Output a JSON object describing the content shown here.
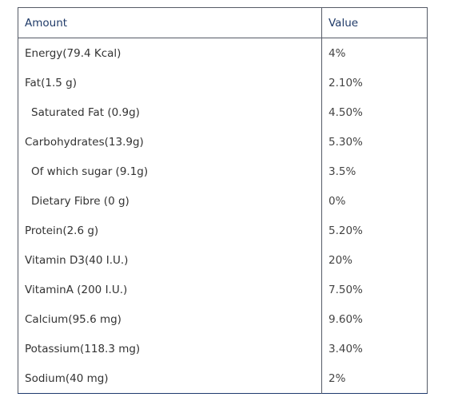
{
  "table": {
    "headers": {
      "amount": "Amount",
      "value": "Value"
    },
    "rows": [
      {
        "amount": "Energy(79.4 Kcal)",
        "value": "4%",
        "indent": false
      },
      {
        "amount": "Fat(1.5 g)",
        "value": "2.10%",
        "indent": false
      },
      {
        "amount": "Saturated Fat (0.9g)",
        "value": "4.50%",
        "indent": true
      },
      {
        "amount": "Carbohydrates(13.9g)",
        "value": "5.30%",
        "indent": false
      },
      {
        "amount": "Of which sugar (9.1g)",
        "value": "3.5%",
        "indent": true
      },
      {
        "amount": "Dietary Fibre (0 g)",
        "value": "0%",
        "indent": true
      },
      {
        "amount": "Protein(2.6 g)",
        "value": "5.20%",
        "indent": false
      },
      {
        "amount": "Vitamin D3(40 I.U.)",
        "value": "20%",
        "indent": false
      },
      {
        "amount": "VitaminA (200 I.U.)",
        "value": "7.50%",
        "indent": false
      },
      {
        "amount": "Calcium(95.6 mg)",
        "value": "9.60%",
        "indent": false
      },
      {
        "amount": "Potassium(118.3 mg)",
        "value": "3.40%",
        "indent": false
      },
      {
        "amount": "Sodium(40 mg)",
        "value": "2%",
        "indent": false
      }
    ]
  },
  "colors": {
    "header_text": "#1f3a68",
    "body_text": "#333333",
    "border": "#555a66",
    "bottom_border": "#1e3a6e"
  }
}
